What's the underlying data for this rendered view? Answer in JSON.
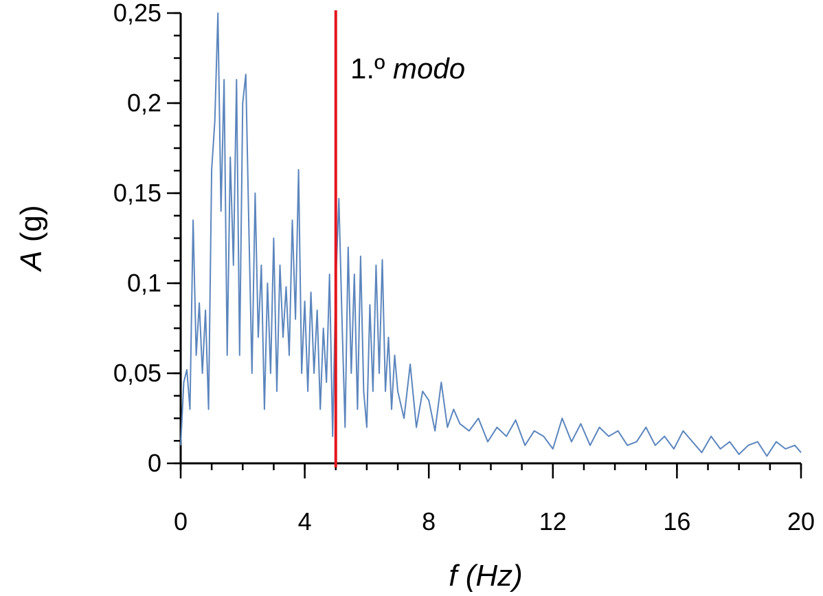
{
  "chart_data": {
    "type": "line",
    "xlabel_var": "f",
    "xlabel_unit": "(Hz)",
    "ylabel_var": "A",
    "ylabel_unit": "(g)",
    "xlim": [
      0,
      20
    ],
    "ylim": [
      0,
      0.25
    ],
    "x_ticks": [
      0,
      4,
      8,
      12,
      16,
      20
    ],
    "x_tick_labels": [
      "0",
      "4",
      "8",
      "12",
      "16",
      "20"
    ],
    "y_ticks": [
      0,
      0.05,
      0.1,
      0.15,
      0.2,
      0.25
    ],
    "y_tick_labels": [
      "0",
      "0,05",
      "0,1",
      "0,15",
      "0,2",
      "0,25"
    ],
    "x_minor_step": 1,
    "y_minor_step": 0.0125,
    "grid": false,
    "series": [
      {
        "color": "#5b85bd",
        "x": [
          0.0,
          0.1,
          0.2,
          0.3,
          0.4,
          0.5,
          0.6,
          0.7,
          0.8,
          0.9,
          1.0,
          1.1,
          1.2,
          1.3,
          1.4,
          1.5,
          1.6,
          1.7,
          1.8,
          1.9,
          2.0,
          2.1,
          2.2,
          2.3,
          2.4,
          2.5,
          2.6,
          2.7,
          2.8,
          2.9,
          3.0,
          3.1,
          3.2,
          3.3,
          3.4,
          3.5,
          3.6,
          3.7,
          3.8,
          3.9,
          4.0,
          4.1,
          4.2,
          4.3,
          4.4,
          4.5,
          4.6,
          4.7,
          4.8,
          4.9,
          5.0,
          5.1,
          5.2,
          5.3,
          5.4,
          5.5,
          5.6,
          5.7,
          5.8,
          5.9,
          6.0,
          6.1,
          6.2,
          6.3,
          6.4,
          6.5,
          6.6,
          6.7,
          6.8,
          6.9,
          7.0,
          7.2,
          7.4,
          7.6,
          7.8,
          8.0,
          8.2,
          8.4,
          8.6,
          8.8,
          9.0,
          9.3,
          9.6,
          9.9,
          10.2,
          10.5,
          10.8,
          11.1,
          11.4,
          11.7,
          12.0,
          12.3,
          12.6,
          12.9,
          13.2,
          13.5,
          13.8,
          14.1,
          14.4,
          14.7,
          15.0,
          15.3,
          15.6,
          15.9,
          16.2,
          16.5,
          16.8,
          17.1,
          17.4,
          17.7,
          18.0,
          18.3,
          18.6,
          18.9,
          19.2,
          19.5,
          19.8,
          20.0
        ],
        "y": [
          0.01,
          0.045,
          0.052,
          0.03,
          0.135,
          0.06,
          0.089,
          0.05,
          0.085,
          0.03,
          0.163,
          0.19,
          0.25,
          0.14,
          0.213,
          0.06,
          0.17,
          0.11,
          0.213,
          0.06,
          0.2,
          0.216,
          0.13,
          0.05,
          0.15,
          0.07,
          0.11,
          0.03,
          0.1,
          0.05,
          0.125,
          0.04,
          0.11,
          0.07,
          0.098,
          0.06,
          0.135,
          0.08,
          0.163,
          0.05,
          0.09,
          0.04,
          0.095,
          0.05,
          0.085,
          0.03,
          0.075,
          0.045,
          0.105,
          0.015,
          0.1,
          0.147,
          0.08,
          0.02,
          0.12,
          0.05,
          0.105,
          0.03,
          0.115,
          0.04,
          0.02,
          0.088,
          0.04,
          0.11,
          0.05,
          0.113,
          0.04,
          0.07,
          0.03,
          0.06,
          0.04,
          0.025,
          0.055,
          0.02,
          0.04,
          0.035,
          0.018,
          0.045,
          0.02,
          0.03,
          0.022,
          0.018,
          0.025,
          0.012,
          0.02,
          0.015,
          0.024,
          0.01,
          0.018,
          0.015,
          0.008,
          0.025,
          0.012,
          0.022,
          0.01,
          0.02,
          0.015,
          0.018,
          0.01,
          0.012,
          0.02,
          0.01,
          0.015,
          0.008,
          0.018,
          0.012,
          0.006,
          0.015,
          0.008,
          0.012,
          0.005,
          0.01,
          0.012,
          0.004,
          0.012,
          0.008,
          0.01,
          0.006
        ]
      }
    ],
    "vline": {
      "x": 5.0,
      "color": "#e3161c"
    },
    "annotation": {
      "text_plain": "1.º ",
      "text_italic": "modo"
    }
  }
}
